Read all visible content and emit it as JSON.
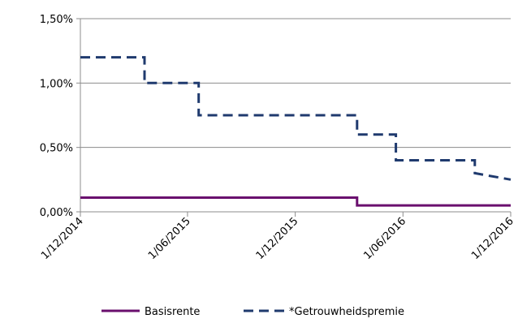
{
  "chart_data": {
    "type": "line",
    "title": "",
    "xlabel": "",
    "ylabel": "",
    "step": true,
    "x_ticks": [
      "1/12/2014",
      "1/06/2015",
      "1/12/2015",
      "1/06/2016",
      "1/12/2016"
    ],
    "xlim": [
      "2014-12-01",
      "2016-12-01"
    ],
    "y_ticks": [
      "0,00%",
      "0,50%",
      "1,00%",
      "1,50%"
    ],
    "ylim": [
      0,
      1.5
    ],
    "grid": "horizontal",
    "legend_position": "bottom",
    "series": [
      {
        "name": "Basisrente",
        "style": "solid",
        "color": "#6a0f6e",
        "points": [
          {
            "x": "2014-12-01",
            "y": 0.11
          },
          {
            "x": "2016-03-15",
            "y": 0.11
          },
          {
            "x": "2016-03-15",
            "y": 0.05
          },
          {
            "x": "2016-12-01",
            "y": 0.05
          }
        ]
      },
      {
        "name": "*Getrouwheidspremie",
        "style": "dashed",
        "color": "#1f3a6e",
        "points": [
          {
            "x": "2014-12-01",
            "y": 1.2
          },
          {
            "x": "2015-03-20",
            "y": 1.2
          },
          {
            "x": "2015-03-20",
            "y": 1.0
          },
          {
            "x": "2015-06-20",
            "y": 1.0
          },
          {
            "x": "2015-06-20",
            "y": 0.75
          },
          {
            "x": "2016-03-15",
            "y": 0.75
          },
          {
            "x": "2016-03-15",
            "y": 0.6
          },
          {
            "x": "2016-05-20",
            "y": 0.6
          },
          {
            "x": "2016-05-20",
            "y": 0.4
          },
          {
            "x": "2016-10-01",
            "y": 0.4
          },
          {
            "x": "2016-10-01",
            "y": 0.3
          },
          {
            "x": "2016-12-01",
            "y": 0.25
          }
        ]
      }
    ]
  }
}
